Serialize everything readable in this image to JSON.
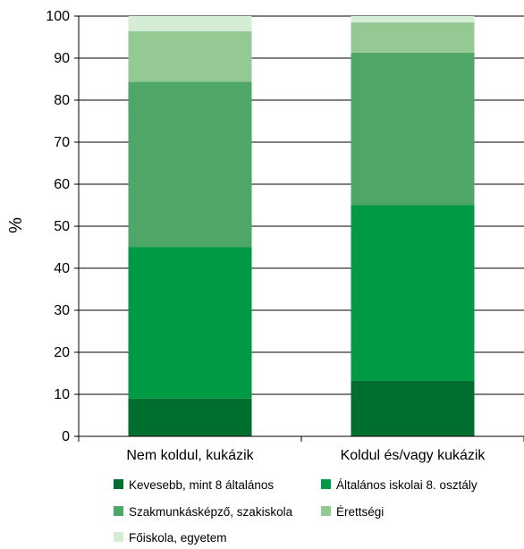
{
  "chart_data": {
    "type": "bar",
    "stacked": true,
    "categories": [
      "Nem koldul, kukázik",
      "Koldul és/vagy kukázik"
    ],
    "series": [
      {
        "name": "Kevesebb, mint 8 általános",
        "values": [
          9,
          13.2
        ],
        "color": "#006e2e"
      },
      {
        "name": "Általános iskolai 8. osztály",
        "values": [
          36,
          41.8
        ],
        "color": "#009a45"
      },
      {
        "name": "Szakmunkásképző, szakiskola",
        "values": [
          39.4,
          36.3
        ],
        "color": "#4ea667"
      },
      {
        "name": "Érettségi",
        "values": [
          12,
          7.2
        ],
        "color": "#94c994"
      },
      {
        "name": "Főiskola, egyetem",
        "values": [
          3.6,
          1.5
        ],
        "color": "#d5ecd5"
      }
    ],
    "xlabel": "",
    "ylabel": "%",
    "ylim": [
      0,
      100
    ],
    "yticks": [
      0,
      10,
      20,
      30,
      40,
      50,
      60,
      70,
      80,
      90,
      100
    ],
    "grid": true,
    "legend_position": "bottom"
  }
}
